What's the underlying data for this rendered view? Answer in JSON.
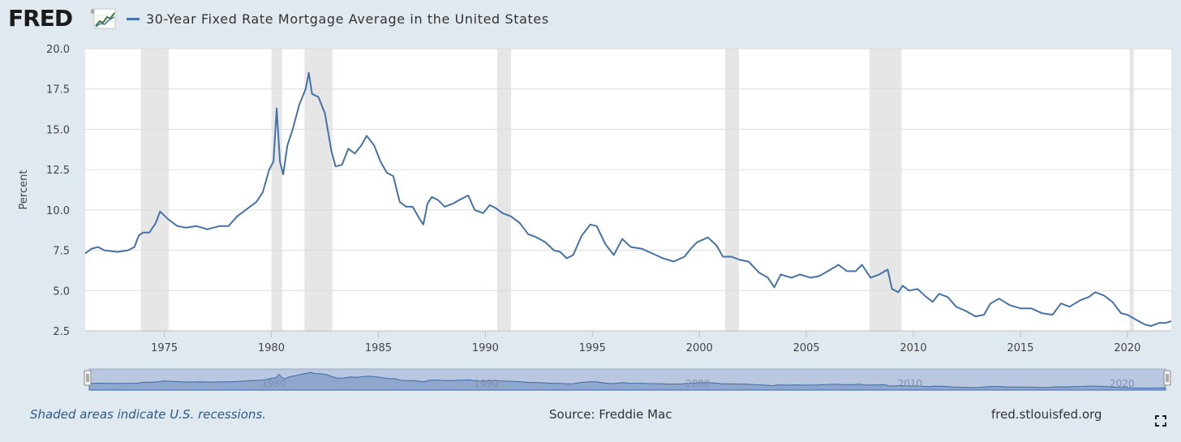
{
  "brand": {
    "logo_text": "FRED",
    "logo_reg": "®",
    "icon": "line-chart-icon"
  },
  "footer": {
    "note": "Shaded areas indicate U.S. recessions.",
    "source": "Source: Freddie Mac",
    "url": "fred.stlouisfed.org",
    "fullscreen_icon": "fullscreen-icon"
  },
  "colors": {
    "line": "#4572a7",
    "recession": "#e6e6e6",
    "navigator_fill": "#b9c7e0",
    "navigator_line": "#3e6aa3"
  },
  "chart_data": {
    "type": "line",
    "title": "",
    "legend": [
      "30-Year Fixed Rate Mortgage Average in the United States"
    ],
    "legend_placement": "top-left",
    "xlabel": "",
    "ylabel": "Percent",
    "xlim": [
      1971.3,
      2022.05
    ],
    "ylim": [
      2.5,
      20.0
    ],
    "x_ticks": [
      1975,
      1980,
      1985,
      1990,
      1995,
      2000,
      2005,
      2010,
      2015,
      2020
    ],
    "y_ticks": [
      2.5,
      5.0,
      7.5,
      10.0,
      12.5,
      15.0,
      17.5,
      20.0
    ],
    "y_tick_labels": [
      "2.5",
      "5.0",
      "7.5",
      "10.0",
      "12.5",
      "15.0",
      "17.5",
      "20.0"
    ],
    "grid": "horizontal",
    "recessions": [
      [
        1973.9,
        1975.2
      ],
      [
        1980.0,
        1980.5
      ],
      [
        1981.55,
        1982.85
      ],
      [
        1990.55,
        1991.2
      ],
      [
        2001.2,
        2001.85
      ],
      [
        2007.95,
        2009.45
      ],
      [
        2020.1,
        2020.3
      ]
    ],
    "navigator_ticks": [
      1980,
      1990,
      2000,
      2010,
      2020
    ],
    "series": [
      {
        "name": "30-Year Fixed Rate Mortgage Average in the United States",
        "x": [
          1971.3,
          1971.6,
          1971.9,
          1972.2,
          1972.8,
          1973.3,
          1973.6,
          1973.8,
          1974.0,
          1974.3,
          1974.6,
          1974.8,
          1975.2,
          1975.6,
          1976.0,
          1976.5,
          1977.0,
          1977.6,
          1978.0,
          1978.4,
          1978.9,
          1979.3,
          1979.6,
          1979.9,
          1980.1,
          1980.25,
          1980.4,
          1980.55,
          1980.75,
          1981.0,
          1981.3,
          1981.6,
          1981.75,
          1981.9,
          1982.2,
          1982.5,
          1982.8,
          1983.0,
          1983.3,
          1983.6,
          1983.9,
          1984.2,
          1984.45,
          1984.8,
          1985.1,
          1985.4,
          1985.7,
          1986.0,
          1986.3,
          1986.6,
          1986.9,
          1987.1,
          1987.3,
          1987.5,
          1987.8,
          1988.1,
          1988.5,
          1988.9,
          1989.2,
          1989.5,
          1989.9,
          1990.2,
          1990.5,
          1990.8,
          1991.2,
          1991.6,
          1992.0,
          1992.4,
          1992.8,
          1993.2,
          1993.5,
          1993.8,
          1994.1,
          1994.5,
          1994.9,
          1995.2,
          1995.6,
          1996.0,
          1996.4,
          1996.8,
          1997.3,
          1997.8,
          1998.3,
          1998.8,
          1999.3,
          1999.6,
          1999.9,
          2000.4,
          2000.8,
          2001.1,
          2001.5,
          2001.9,
          2002.3,
          2002.8,
          2003.2,
          2003.5,
          2003.8,
          2004.3,
          2004.7,
          2005.2,
          2005.6,
          2006.0,
          2006.5,
          2006.9,
          2007.3,
          2007.6,
          2008.0,
          2008.4,
          2008.8,
          2009.0,
          2009.3,
          2009.5,
          2009.8,
          2010.2,
          2010.6,
          2010.9,
          2011.2,
          2011.6,
          2012.0,
          2012.5,
          2012.9,
          2013.3,
          2013.6,
          2014.0,
          2014.5,
          2015.0,
          2015.5,
          2016.0,
          2016.5,
          2016.9,
          2017.3,
          2017.8,
          2018.2,
          2018.5,
          2018.9,
          2019.3,
          2019.7,
          2020.0,
          2020.4,
          2020.8,
          2021.1,
          2021.5,
          2021.8,
          2022.05
        ],
        "values": [
          7.3,
          7.6,
          7.7,
          7.5,
          7.4,
          7.5,
          7.7,
          8.4,
          8.6,
          8.6,
          9.2,
          9.9,
          9.4,
          9.0,
          8.9,
          9.0,
          8.8,
          9.0,
          9.0,
          9.6,
          10.1,
          10.5,
          11.1,
          12.5,
          13.0,
          16.3,
          13.0,
          12.2,
          14.0,
          15.0,
          16.5,
          17.5,
          18.5,
          17.2,
          17.0,
          16.0,
          13.7,
          12.7,
          12.8,
          13.8,
          13.5,
          14.0,
          14.6,
          14.0,
          13.0,
          12.3,
          12.1,
          10.5,
          10.2,
          10.2,
          9.5,
          9.1,
          10.4,
          10.8,
          10.6,
          10.2,
          10.4,
          10.7,
          10.9,
          10.0,
          9.8,
          10.3,
          10.1,
          9.8,
          9.6,
          9.2,
          8.5,
          8.3,
          8.0,
          7.5,
          7.4,
          7.0,
          7.2,
          8.4,
          9.1,
          9.0,
          7.9,
          7.2,
          8.2,
          7.7,
          7.6,
          7.3,
          7.0,
          6.8,
          7.1,
          7.6,
          8.0,
          8.3,
          7.8,
          7.1,
          7.1,
          6.9,
          6.8,
          6.1,
          5.8,
          5.2,
          6.0,
          5.8,
          6.0,
          5.8,
          5.9,
          6.2,
          6.6,
          6.2,
          6.2,
          6.6,
          5.8,
          6.0,
          6.3,
          5.1,
          4.9,
          5.3,
          5.0,
          5.1,
          4.6,
          4.3,
          4.8,
          4.6,
          4.0,
          3.7,
          3.4,
          3.5,
          4.2,
          4.5,
          4.1,
          3.9,
          3.9,
          3.6,
          3.5,
          4.2,
          4.0,
          4.4,
          4.6,
          4.9,
          4.7,
          4.3,
          3.6,
          3.5,
          3.2,
          2.9,
          2.8,
          3.0,
          3.0,
          3.1
        ]
      }
    ]
  }
}
